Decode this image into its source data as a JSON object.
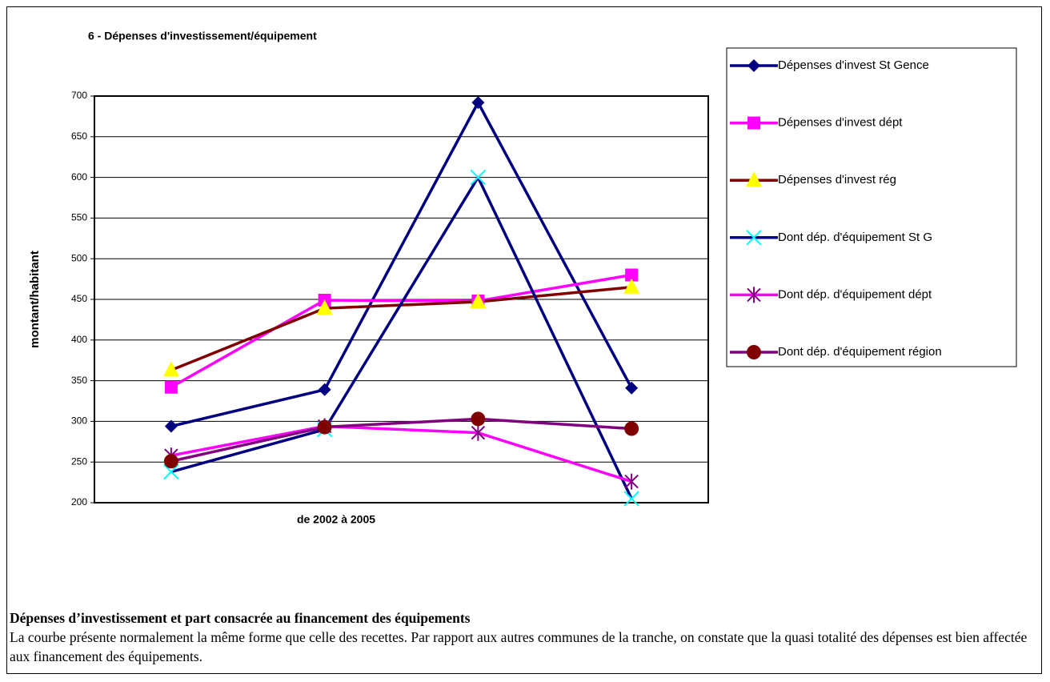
{
  "chart_data": {
    "type": "line",
    "title": "6 - Dépenses d'investissement/équipement",
    "x_label": "de 2002 à 2005",
    "y_label": "montant/habitant",
    "categories": [
      null,
      null,
      null,
      null
    ],
    "ylim": [
      200,
      700
    ],
    "yticks": [
      200,
      250,
      300,
      350,
      400,
      450,
      500,
      550,
      600,
      650,
      700
    ],
    "grid": true,
    "legend": "right",
    "series": [
      {
        "name": "Dépenses d'invest St Gence",
        "color": "#000080",
        "marker": "diamond",
        "marker_color": "#000080",
        "values": [
          294,
          339,
          692,
          341
        ]
      },
      {
        "name": "Dépenses d'invest dépt",
        "color": "#ff00ff",
        "marker": "square",
        "marker_color": "#ff00ff",
        "values": [
          342,
          449,
          448,
          480
        ]
      },
      {
        "name": "Dépenses d'invest rég",
        "color": "#800000",
        "marker": "triangle",
        "marker_color": "#ffff00",
        "values": [
          363,
          439,
          447,
          465
        ]
      },
      {
        "name": "Dont dép. d'équipement St G",
        "color": "#000080",
        "marker": "x",
        "marker_color": "#00ffff",
        "values": [
          238,
          290,
          600,
          205
        ]
      },
      {
        "name": "Dont dép. d'équipement dépt",
        "color": "#ff00ff",
        "marker": "star",
        "marker_color": "#800080",
        "values": [
          258,
          294,
          286,
          226
        ]
      },
      {
        "name": "Dont dép. d'équipement région",
        "color": "#800080",
        "marker": "circle",
        "marker_color": "#800000",
        "values": [
          251,
          293,
          303,
          291
        ]
      }
    ]
  },
  "text": {
    "heading": "Dépenses d’investissement et part consacrée au financement des équipements",
    "paragraph": "La courbe présente normalement la même forme que celle des recettes. Par rapport aux autres communes de la tranche, on constate que la quasi totalité des dépenses est bien affectée aux financement des équipements."
  }
}
